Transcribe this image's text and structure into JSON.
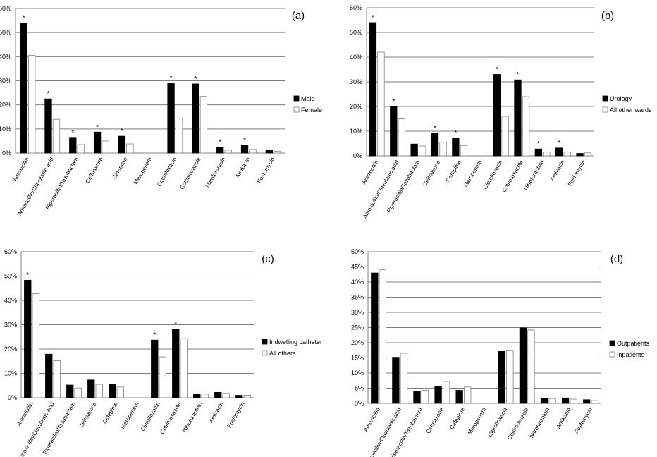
{
  "colors": {
    "series_primary": "#000000",
    "series_secondary": "#ffffff",
    "grid": "#7f7f7f",
    "axis": "#808080"
  },
  "chart_data": [
    {
      "panel_label": "(a)",
      "type": "bar",
      "categories": [
        "Amoxicillin",
        "Amoxicillin/Clavulanic acid",
        "Piperacillin/Tazobactam",
        "Ceftriaxone",
        "Cefepime",
        "Meropenem",
        "Ciprofloxacin",
        "Cotrimoxazole",
        "Nitrofurantoin",
        "Amikacin",
        "Fosfomycin"
      ],
      "series": [
        {
          "name": "Male",
          "values": [
            54,
            22.5,
            6.5,
            8.7,
            7,
            0,
            29,
            28.7,
            2.5,
            3.2,
            1.2
          ]
        },
        {
          "name": "Female",
          "values": [
            40.5,
            14,
            3.5,
            5,
            3.8,
            0,
            14.5,
            23.5,
            1.2,
            1.5,
            0.8
          ]
        }
      ],
      "significant": [
        true,
        true,
        true,
        true,
        true,
        false,
        true,
        true,
        true,
        true,
        false
      ],
      "significance_marker": "*",
      "ylim": [
        0,
        60
      ],
      "yticks": [
        "0%",
        "10%",
        "20%",
        "30%",
        "40%",
        "50%",
        "60%"
      ],
      "grid": true,
      "legend": "right"
    },
    {
      "panel_label": "(b)",
      "type": "bar",
      "categories": [
        "Amoxicillin",
        "Amoxicillin/Clavulanic acid",
        "Piperacillin/Tazobactam",
        "Ceftriaxone",
        "Cefepime",
        "Meropenem",
        "Ciprofloxacin",
        "Cotrimoxazole",
        "Nitrofurantoin",
        "Amikacin",
        "Fosfomycin"
      ],
      "series": [
        {
          "name": "Urology",
          "values": [
            54,
            20,
            4.8,
            9.2,
            7.3,
            0,
            33,
            30.8,
            2.8,
            3.2,
            1
          ]
        },
        {
          "name": "All other wards",
          "values": [
            42,
            15,
            4,
            5.5,
            4.2,
            0,
            16,
            24,
            1.5,
            1.5,
            1.2
          ]
        }
      ],
      "significant": [
        true,
        true,
        false,
        true,
        true,
        false,
        true,
        true,
        true,
        true,
        false
      ],
      "significance_marker": "*",
      "ylim": [
        0,
        60
      ],
      "yticks": [
        "0%",
        "10%",
        "20%",
        "30%",
        "40%",
        "50%",
        "60%"
      ],
      "grid": true,
      "legend": "right"
    },
    {
      "panel_label": "(c)",
      "type": "bar",
      "categories": [
        "Amoxicillin",
        "Amoxicillin/Clavulanic acid",
        "Piperacillin/Tazobactam",
        "Ceftriaxone",
        "Cefepime",
        "Meropenem",
        "Ciprofloxacin",
        "Cotrimoxazole",
        "Nitrofurantoin",
        "Amikacin",
        "Fosfomycin"
      ],
      "series": [
        {
          "name": "Indwelling catheter",
          "values": [
            48.3,
            17.9,
            5.2,
            7.3,
            5.5,
            0,
            23.7,
            28,
            1.6,
            2.2,
            1
          ]
        },
        {
          "name": "All others",
          "values": [
            42.8,
            15.2,
            4,
            5.5,
            4.4,
            0,
            16.8,
            24.3,
            1.5,
            1.8,
            1
          ]
        }
      ],
      "significant": [
        true,
        false,
        false,
        false,
        false,
        false,
        true,
        true,
        false,
        false,
        false
      ],
      "significance_marker": "*",
      "ylim": [
        0,
        60
      ],
      "yticks": [
        "0%",
        "10%",
        "20%",
        "30%",
        "40%",
        "50%",
        "60%"
      ],
      "grid": true,
      "legend": "right"
    },
    {
      "panel_label": "(d)",
      "type": "bar",
      "categories": [
        "Amoxicillin",
        "Amoxicillin/Clavulanic acid",
        "Piperacillin/Tazobactam",
        "Ceftriaxone",
        "Cefepime",
        "Meropenem",
        "Ciprofloxacin",
        "Cotrimoxazole",
        "Nitrofurantoin",
        "Amikacin",
        "Fosfomycin"
      ],
      "series": [
        {
          "name": "Outpatients",
          "values": [
            43,
            15.2,
            3.9,
            5.5,
            4.3,
            0,
            17.3,
            24.9,
            1.6,
            1.8,
            1.2
          ]
        },
        {
          "name": "Inpatients",
          "values": [
            44,
            16.5,
            4.3,
            7.2,
            5.4,
            0,
            17.5,
            24.2,
            1.6,
            1.4,
            0.9
          ]
        }
      ],
      "significant": [
        false,
        false,
        false,
        false,
        false,
        false,
        false,
        false,
        false,
        false,
        false
      ],
      "significance_marker": "*",
      "ylim": [
        0,
        50
      ],
      "yticks": [
        "0%",
        "5%",
        "10%",
        "15%",
        "20%",
        "25%",
        "30%",
        "35%",
        "40%",
        "45%",
        "50%"
      ],
      "grid": true,
      "legend": "right"
    }
  ]
}
